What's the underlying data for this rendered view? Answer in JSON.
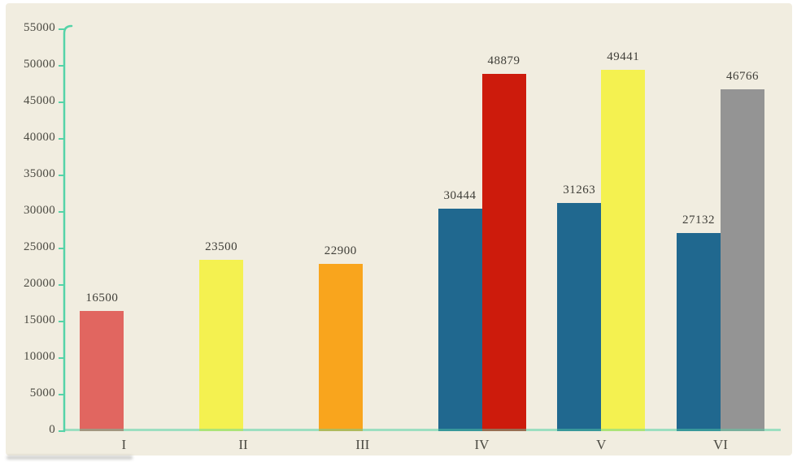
{
  "page": {
    "background": "#ffffff",
    "panel_background": "#f1ede0"
  },
  "chart_data": {
    "type": "bar",
    "title": "",
    "grid": false,
    "legend": null,
    "axis_color": "#55d3a8",
    "tick_label_color": "#4b4a42",
    "value_label_color": "#3f3e38",
    "categories": [
      "I",
      "II",
      "III",
      "IV",
      "V",
      "VI"
    ],
    "y_axis": {
      "min": 0,
      "max": 55000,
      "tick_step": 5000,
      "tick_labels": [
        "0",
        "5000",
        "10000",
        "15000",
        "20000",
        "25000",
        "30000",
        "35000",
        "40000",
        "45000",
        "50000",
        "55000"
      ]
    },
    "groups": [
      {
        "category": "I",
        "bars": [
          {
            "value": 16500,
            "label": "16500",
            "color": "#e16660"
          }
        ]
      },
      {
        "category": "II",
        "bars": [
          {
            "value": 23500,
            "label": "23500",
            "color": "#f4f150"
          }
        ]
      },
      {
        "category": "III",
        "bars": [
          {
            "value": 22900,
            "label": "22900",
            "color": "#f9a51d"
          }
        ]
      },
      {
        "category": "IV",
        "bars": [
          {
            "value": 30444,
            "label": "30444",
            "color": "#20688f"
          },
          {
            "value": 48879,
            "label": "48879",
            "color": "#cd1b0c"
          }
        ]
      },
      {
        "category": "V",
        "bars": [
          {
            "value": 31263,
            "label": "31263",
            "color": "#20688f"
          },
          {
            "value": 49441,
            "label": "49441",
            "color": "#f4f150"
          }
        ]
      },
      {
        "category": "VI",
        "bars": [
          {
            "value": 27132,
            "label": "27132",
            "color": "#20688f"
          },
          {
            "value": 46766,
            "label": "46766",
            "color": "#949494"
          }
        ]
      }
    ]
  }
}
